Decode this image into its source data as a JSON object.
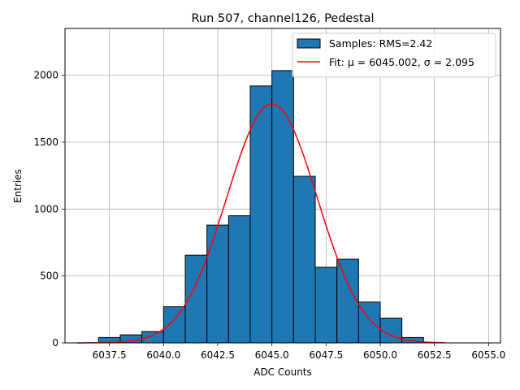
{
  "chart_data": {
    "type": "bar",
    "title": "Run 507, channel126, Pedestal",
    "xlabel": "ADC Counts",
    "ylabel": "Entries",
    "xlim": [
      6035.45,
      6055.55
    ],
    "ylim": [
      0,
      2350
    ],
    "x_ticks": [
      6037.5,
      6040.0,
      6042.5,
      6045.0,
      6047.5,
      6050.0,
      6052.5,
      6055.0
    ],
    "x_tick_labels": [
      "6037.5",
      "6040.0",
      "6042.5",
      "6045.0",
      "6047.5",
      "6050.0",
      "6052.5",
      "6055.0"
    ],
    "y_ticks": [
      0,
      500,
      1000,
      1500,
      2000
    ],
    "y_tick_labels": [
      "0",
      "500",
      "1000",
      "1500",
      "2000"
    ],
    "grid": true,
    "legend_position": "top-right",
    "bins": [
      {
        "left": 6037.0,
        "right": 6038.0,
        "value": 40
      },
      {
        "left": 6038.0,
        "right": 6039.0,
        "value": 60
      },
      {
        "left": 6039.0,
        "right": 6040.0,
        "value": 85
      },
      {
        "left": 6040.0,
        "right": 6041.0,
        "value": 270
      },
      {
        "left": 6041.0,
        "right": 6042.0,
        "value": 655
      },
      {
        "left": 6042.0,
        "right": 6043.0,
        "value": 880
      },
      {
        "left": 6043.0,
        "right": 6044.0,
        "value": 950
      },
      {
        "left": 6044.0,
        "right": 6045.0,
        "value": 1920
      },
      {
        "left": 6045.0,
        "right": 6046.0,
        "value": 2035
      },
      {
        "left": 6046.0,
        "right": 6047.0,
        "value": 1245
      },
      {
        "left": 6047.0,
        "right": 6048.0,
        "value": 565
      },
      {
        "left": 6048.0,
        "right": 6049.0,
        "value": 625
      },
      {
        "left": 6049.0,
        "right": 6050.0,
        "value": 305
      },
      {
        "left": 6050.0,
        "right": 6051.0,
        "value": 185
      },
      {
        "left": 6051.0,
        "right": 6052.0,
        "value": 40
      }
    ],
    "series": [
      {
        "name": "Samples: RMS=2.42",
        "kind": "histogram",
        "color": "#1f77b4"
      },
      {
        "name": "Fit: μ = 6045.002, σ = 2.095",
        "kind": "gaussian-fit",
        "color": "#ff0000",
        "mu": 6045.002,
        "sigma": 2.095,
        "amplitude": 1785,
        "x_range": [
          6036,
          6053
        ]
      }
    ]
  }
}
